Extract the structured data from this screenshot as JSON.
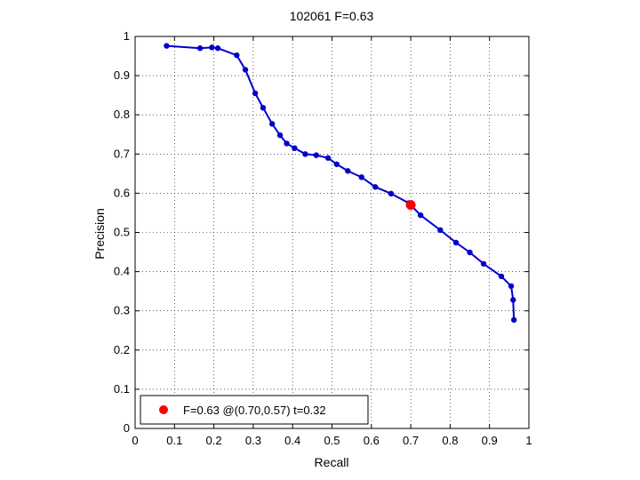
{
  "chart_data": {
    "type": "line",
    "title": "102061 F=0.63",
    "xlabel": "Recall",
    "ylabel": "Precision",
    "xlim": [
      0,
      1
    ],
    "ylim": [
      0,
      1
    ],
    "grid": true,
    "x_ticks": [
      0,
      0.1,
      0.2,
      0.3,
      0.4,
      0.5,
      0.6,
      0.7,
      0.8,
      0.9,
      1
    ],
    "x_tick_labels": [
      "0",
      "0.1",
      "0.2",
      "0.3",
      "0.4",
      "0.5",
      "0.6",
      "0.7",
      "0.8",
      "0.9",
      "1"
    ],
    "y_ticks": [
      0,
      0.1,
      0.2,
      0.3,
      0.4,
      0.5,
      0.6,
      0.7,
      0.8,
      0.9,
      1
    ],
    "y_tick_labels": [
      "0",
      "0.1",
      "0.2",
      "0.3",
      "0.4",
      "0.5",
      "0.6",
      "0.7",
      "0.8",
      "0.9",
      "1"
    ],
    "series": [
      {
        "color": "#0000cc",
        "x": [
          0.08,
          0.165,
          0.195,
          0.21,
          0.258,
          0.28,
          0.305,
          0.325,
          0.348,
          0.368,
          0.385,
          0.405,
          0.432,
          0.46,
          0.49,
          0.512,
          0.54,
          0.575,
          0.61,
          0.65,
          0.695,
          0.725,
          0.775,
          0.815,
          0.85,
          0.885,
          0.93,
          0.955,
          0.96,
          0.962
        ],
        "y": [
          0.976,
          0.97,
          0.972,
          0.97,
          0.952,
          0.915,
          0.855,
          0.818,
          0.777,
          0.748,
          0.727,
          0.715,
          0.7,
          0.697,
          0.69,
          0.674,
          0.657,
          0.641,
          0.616,
          0.599,
          0.575,
          0.544,
          0.506,
          0.474,
          0.449,
          0.42,
          0.388,
          0.363,
          0.328,
          0.277
        ]
      }
    ],
    "highlight": {
      "x": 0.7,
      "y": 0.57,
      "color": "#ff0000"
    },
    "legend": {
      "position": "bottom-left",
      "entries": [
        {
          "label": "F=0.63 @(0.70,0.57) t=0.32",
          "color": "#ff0000"
        }
      ]
    }
  }
}
